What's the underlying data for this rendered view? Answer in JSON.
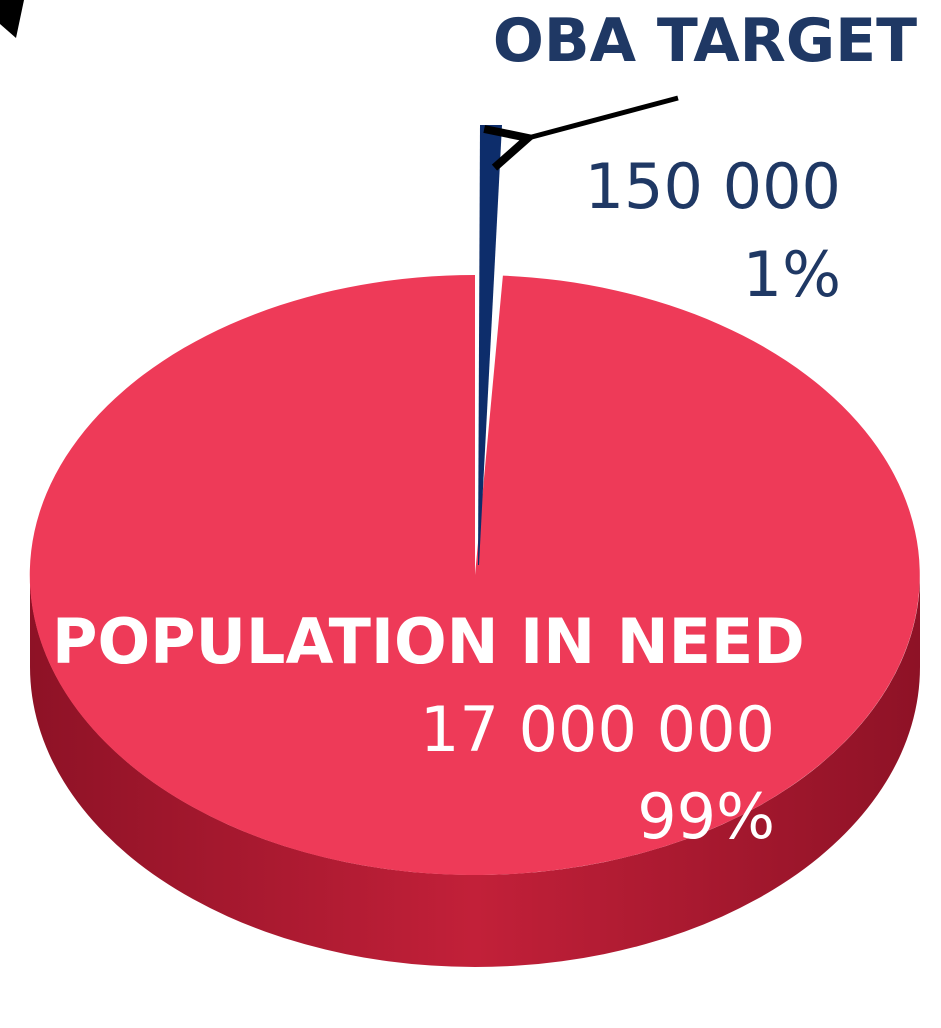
{
  "chart_data": {
    "type": "pie",
    "slices": [
      {
        "label": "OBA TARGET",
        "value_text": "150 000",
        "percent_text": "1%",
        "value": 150000,
        "percent": 1,
        "color": "#0d2d6b"
      },
      {
        "label": "POPULATION IN NEED",
        "value_text": "17 000 000",
        "percent_text": "99%",
        "value": 17000000,
        "percent": 99,
        "color": "#ee3a58"
      }
    ],
    "colors": {
      "pie_side": "#a8182e",
      "oba_text": "#1f3864",
      "pop_text": "#ffffff",
      "arrow": "#000000"
    }
  }
}
